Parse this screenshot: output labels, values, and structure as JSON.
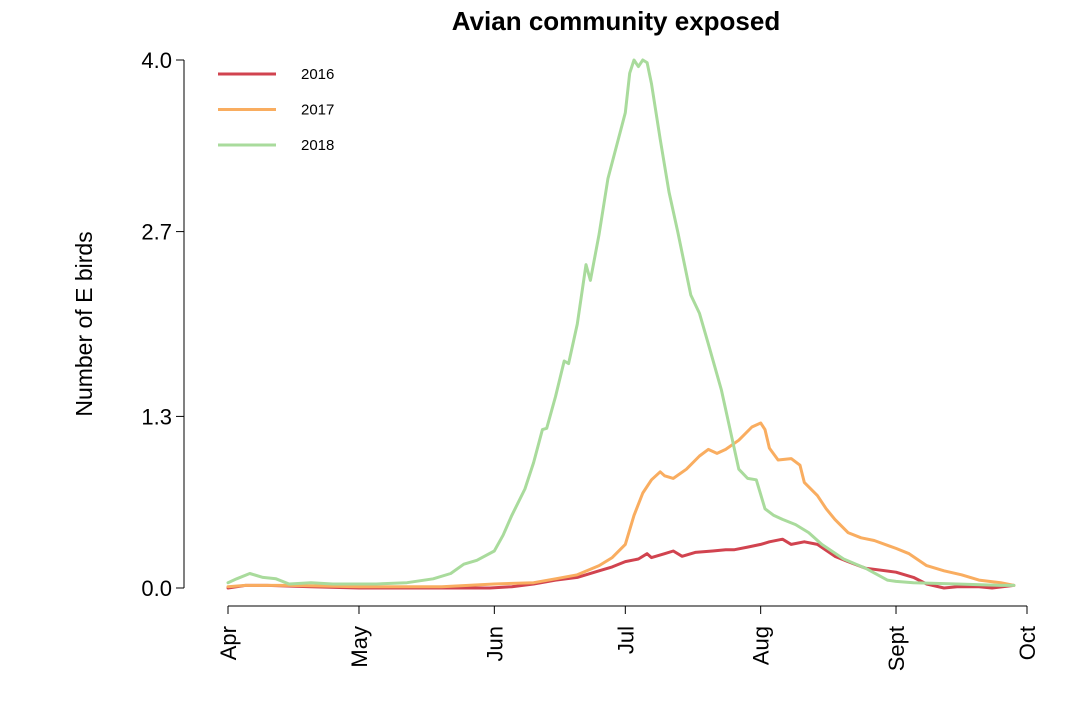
{
  "chart_data": {
    "type": "line",
    "title": "Avian community exposed",
    "xlabel": "",
    "ylabel": "Number of E birds",
    "ylim": [
      0,
      4.0
    ],
    "xlim": [
      "2000-04-01",
      "2000-10-01"
    ],
    "y_ticks": [
      "0.0",
      "1.3",
      "2.7",
      "4.0"
    ],
    "x_ticks": [
      {
        "label": "Apr",
        "date": "2000-04-01"
      },
      {
        "label": "May",
        "date": "2000-05-01"
      },
      {
        "label": "Jun",
        "date": "2000-06-01"
      },
      {
        "label": "Jul",
        "date": "2000-07-01"
      },
      {
        "label": "Aug",
        "date": "2000-08-01"
      },
      {
        "label": "Sept",
        "date": "2000-09-01"
      },
      {
        "label": "Oct",
        "date": "2000-10-01"
      }
    ],
    "grid": false,
    "legend_position": "top-left",
    "series": [
      {
        "name": "2016",
        "color": "#D1434F",
        "points": [
          [
            "2000-04-01",
            0.0
          ],
          [
            "2000-04-05",
            0.02
          ],
          [
            "2000-04-10",
            0.02
          ],
          [
            "2000-04-20",
            0.01
          ],
          [
            "2000-05-01",
            0.0
          ],
          [
            "2000-05-10",
            0.0
          ],
          [
            "2000-05-20",
            0.0
          ],
          [
            "2000-05-31",
            0.0
          ],
          [
            "2000-06-05",
            0.01
          ],
          [
            "2000-06-10",
            0.03
          ],
          [
            "2000-06-15",
            0.06
          ],
          [
            "2000-06-20",
            0.08
          ],
          [
            "2000-06-25",
            0.13
          ],
          [
            "2000-06-28",
            0.16
          ],
          [
            "2000-07-01",
            0.2
          ],
          [
            "2000-07-04",
            0.22
          ],
          [
            "2000-07-06",
            0.26
          ],
          [
            "2000-07-07",
            0.23
          ],
          [
            "2000-07-10",
            0.26
          ],
          [
            "2000-07-12",
            0.28
          ],
          [
            "2000-07-14",
            0.24
          ],
          [
            "2000-07-17",
            0.27
          ],
          [
            "2000-07-21",
            0.28
          ],
          [
            "2000-07-24",
            0.29
          ],
          [
            "2000-07-26",
            0.29
          ],
          [
            "2000-07-29",
            0.31
          ],
          [
            "2000-08-01",
            0.33
          ],
          [
            "2000-08-03",
            0.35
          ],
          [
            "2000-08-06",
            0.37
          ],
          [
            "2000-08-08",
            0.33
          ],
          [
            "2000-08-11",
            0.35
          ],
          [
            "2000-08-14",
            0.33
          ],
          [
            "2000-08-18",
            0.24
          ],
          [
            "2000-08-21",
            0.2
          ],
          [
            "2000-08-25",
            0.15
          ],
          [
            "2000-09-01",
            0.12
          ],
          [
            "2000-09-05",
            0.08
          ],
          [
            "2000-09-08",
            0.03
          ],
          [
            "2000-09-12",
            0.0
          ],
          [
            "2000-09-15",
            0.01
          ],
          [
            "2000-09-20",
            0.01
          ],
          [
            "2000-09-23",
            0.0
          ],
          [
            "2000-09-28",
            0.02
          ]
        ]
      },
      {
        "name": "2017",
        "color": "#F9AD60",
        "points": [
          [
            "2000-04-01",
            0.01
          ],
          [
            "2000-04-05",
            0.02
          ],
          [
            "2000-04-15",
            0.02
          ],
          [
            "2000-05-01",
            0.01
          ],
          [
            "2000-05-20",
            0.01
          ],
          [
            "2000-06-01",
            0.03
          ],
          [
            "2000-06-10",
            0.04
          ],
          [
            "2000-06-15",
            0.07
          ],
          [
            "2000-06-20",
            0.1
          ],
          [
            "2000-06-25",
            0.17
          ],
          [
            "2000-06-28",
            0.23
          ],
          [
            "2000-07-01",
            0.33
          ],
          [
            "2000-07-03",
            0.55
          ],
          [
            "2000-07-05",
            0.72
          ],
          [
            "2000-07-07",
            0.82
          ],
          [
            "2000-07-09",
            0.88
          ],
          [
            "2000-07-10",
            0.85
          ],
          [
            "2000-07-12",
            0.83
          ],
          [
            "2000-07-15",
            0.9
          ],
          [
            "2000-07-18",
            1.0
          ],
          [
            "2000-07-20",
            1.05
          ],
          [
            "2000-07-22",
            1.02
          ],
          [
            "2000-07-24",
            1.05
          ],
          [
            "2000-07-27",
            1.12
          ],
          [
            "2000-07-30",
            1.22
          ],
          [
            "2000-08-01",
            1.25
          ],
          [
            "2000-08-02",
            1.2
          ],
          [
            "2000-08-03",
            1.06
          ],
          [
            "2000-08-05",
            0.97
          ],
          [
            "2000-08-08",
            0.98
          ],
          [
            "2000-08-10",
            0.93
          ],
          [
            "2000-08-11",
            0.8
          ],
          [
            "2000-08-14",
            0.7
          ],
          [
            "2000-08-16",
            0.6
          ],
          [
            "2000-08-18",
            0.52
          ],
          [
            "2000-08-21",
            0.42
          ],
          [
            "2000-08-24",
            0.38
          ],
          [
            "2000-08-27",
            0.36
          ],
          [
            "2000-09-01",
            0.3
          ],
          [
            "2000-09-04",
            0.26
          ],
          [
            "2000-09-08",
            0.17
          ],
          [
            "2000-09-12",
            0.13
          ],
          [
            "2000-09-16",
            0.1
          ],
          [
            "2000-09-20",
            0.06
          ],
          [
            "2000-09-25",
            0.04
          ],
          [
            "2000-09-28",
            0.02
          ]
        ]
      },
      {
        "name": "2018",
        "color": "#A9DB9C",
        "points": [
          [
            "2000-04-01",
            0.04
          ],
          [
            "2000-04-03",
            0.07
          ],
          [
            "2000-04-06",
            0.11
          ],
          [
            "2000-04-09",
            0.08
          ],
          [
            "2000-04-12",
            0.07
          ],
          [
            "2000-04-15",
            0.03
          ],
          [
            "2000-04-20",
            0.04
          ],
          [
            "2000-04-25",
            0.03
          ],
          [
            "2000-05-05",
            0.03
          ],
          [
            "2000-05-12",
            0.04
          ],
          [
            "2000-05-18",
            0.07
          ],
          [
            "2000-05-22",
            0.11
          ],
          [
            "2000-05-25",
            0.18
          ],
          [
            "2000-05-28",
            0.21
          ],
          [
            "2000-06-01",
            0.28
          ],
          [
            "2000-06-03",
            0.4
          ],
          [
            "2000-06-05",
            0.55
          ],
          [
            "2000-06-08",
            0.75
          ],
          [
            "2000-06-10",
            0.95
          ],
          [
            "2000-06-12",
            1.2
          ],
          [
            "2000-06-13",
            1.21
          ],
          [
            "2000-06-15",
            1.45
          ],
          [
            "2000-06-17",
            1.72
          ],
          [
            "2000-06-18",
            1.7
          ],
          [
            "2000-06-20",
            2.0
          ],
          [
            "2000-06-22",
            2.45
          ],
          [
            "2000-06-23",
            2.33
          ],
          [
            "2000-06-25",
            2.68
          ],
          [
            "2000-06-27",
            3.1
          ],
          [
            "2000-06-29",
            3.35
          ],
          [
            "2000-07-01",
            3.6
          ],
          [
            "2000-07-02",
            3.9
          ],
          [
            "2000-07-03",
            4.0
          ],
          [
            "2000-07-04",
            3.95
          ],
          [
            "2000-07-05",
            4.0
          ],
          [
            "2000-07-06",
            3.98
          ],
          [
            "2000-07-07",
            3.82
          ],
          [
            "2000-07-09",
            3.4
          ],
          [
            "2000-07-11",
            3.0
          ],
          [
            "2000-07-13",
            2.7
          ],
          [
            "2000-07-16",
            2.22
          ],
          [
            "2000-07-18",
            2.08
          ],
          [
            "2000-07-20",
            1.85
          ],
          [
            "2000-07-23",
            1.5
          ],
          [
            "2000-07-25",
            1.2
          ],
          [
            "2000-07-27",
            0.9
          ],
          [
            "2000-07-29",
            0.83
          ],
          [
            "2000-07-31",
            0.82
          ],
          [
            "2000-08-02",
            0.6
          ],
          [
            "2000-08-04",
            0.55
          ],
          [
            "2000-08-06",
            0.52
          ],
          [
            "2000-08-09",
            0.48
          ],
          [
            "2000-08-12",
            0.42
          ],
          [
            "2000-08-15",
            0.33
          ],
          [
            "2000-08-20",
            0.22
          ],
          [
            "2000-08-25",
            0.15
          ],
          [
            "2000-08-30",
            0.06
          ],
          [
            "2000-09-01",
            0.05
          ],
          [
            "2000-09-05",
            0.04
          ],
          [
            "2000-09-15",
            0.03
          ],
          [
            "2000-09-25",
            0.02
          ],
          [
            "2000-09-28",
            0.02
          ]
        ]
      }
    ]
  }
}
